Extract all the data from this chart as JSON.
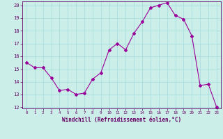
{
  "x": [
    0,
    1,
    2,
    3,
    4,
    5,
    6,
    7,
    8,
    9,
    10,
    11,
    12,
    13,
    14,
    15,
    16,
    17,
    18,
    19,
    20,
    21,
    22,
    23
  ],
  "y": [
    15.5,
    15.1,
    15.1,
    14.3,
    13.3,
    13.4,
    13.0,
    13.1,
    14.2,
    14.7,
    16.5,
    17.0,
    16.5,
    17.8,
    18.7,
    19.8,
    20.0,
    20.2,
    19.2,
    18.9,
    17.6,
    13.7,
    13.8,
    12.0
  ],
  "line_color": "#990099",
  "marker": "D",
  "marker_size": 2,
  "bg_color": "#cceee8",
  "grid_color": "#aadddd",
  "xlabel": "Windchill (Refroidissement éolien,°C)",
  "xlabel_color": "#660066",
  "tick_color": "#660066",
  "ylim": [
    12,
    20
  ],
  "xlim": [
    -0.5,
    23.5
  ],
  "yticks": [
    12,
    13,
    14,
    15,
    16,
    17,
    18,
    19,
    20
  ],
  "xticks": [
    0,
    1,
    2,
    3,
    4,
    5,
    6,
    7,
    8,
    9,
    10,
    11,
    12,
    13,
    14,
    15,
    16,
    17,
    18,
    19,
    20,
    21,
    22,
    23
  ]
}
